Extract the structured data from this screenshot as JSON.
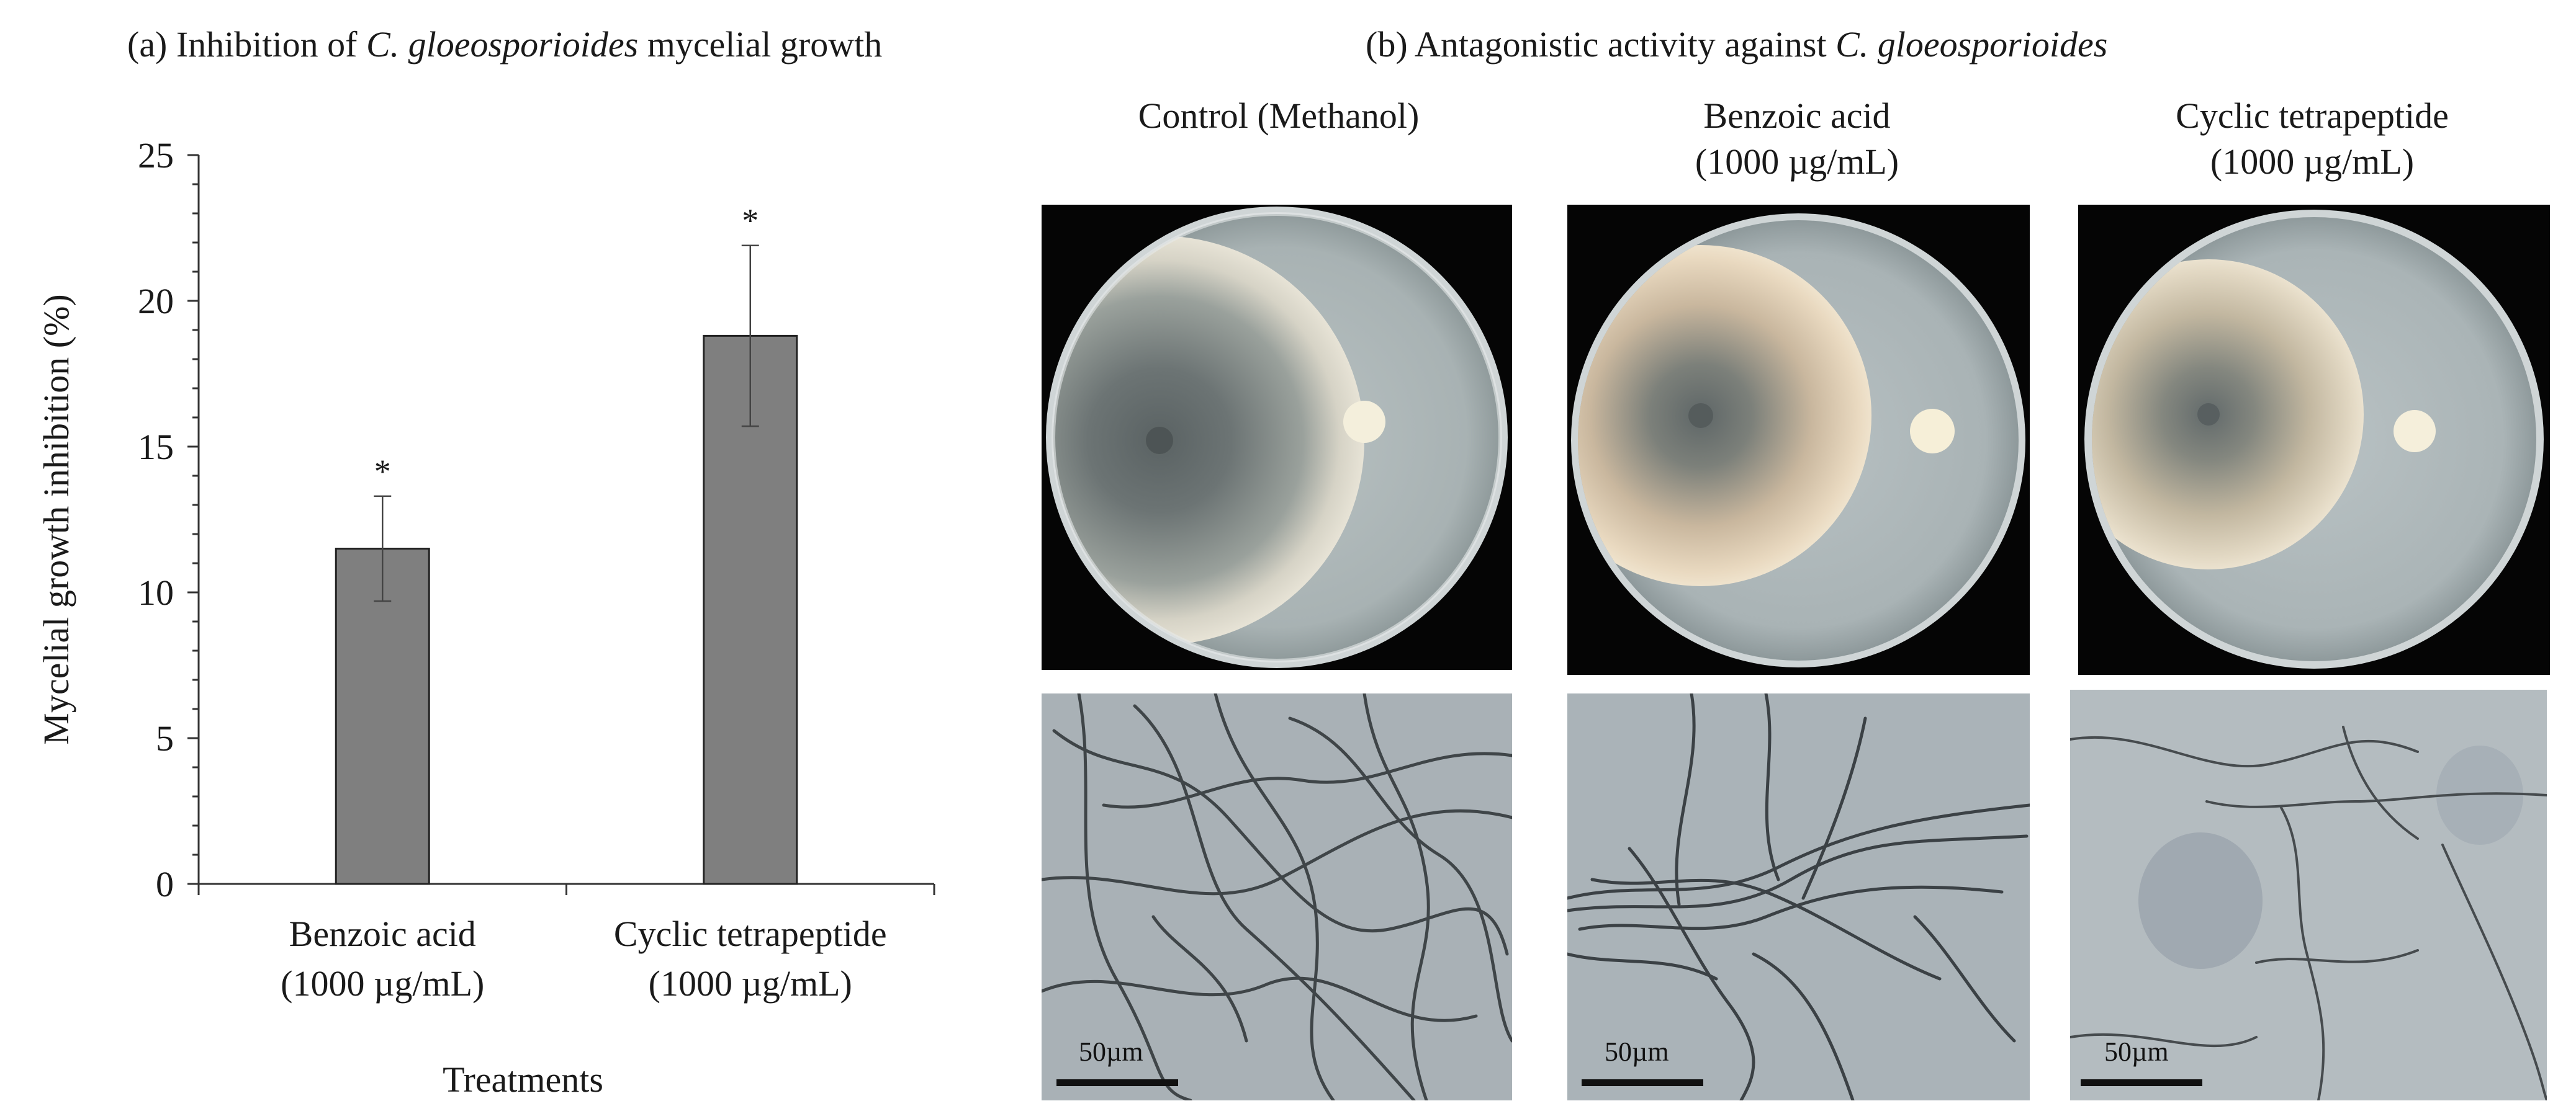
{
  "panel_a": {
    "title_prefix": "(a) Inhibition of ",
    "title_italic": "C. gloeosporioides",
    "title_suffix": " mycelial growth"
  },
  "panel_b": {
    "title_prefix": "(b) Antagonistic activity against ",
    "title_italic": "C. gloeosporioides",
    "columns": [
      {
        "line1": "Control (Methanol)",
        "line2": ""
      },
      {
        "line1": "Benzoic acid",
        "line2": "(1000 µg/mL)"
      },
      {
        "line1": "Cyclic tetrapeptide",
        "line2": "(1000 µg/mL)"
      }
    ],
    "scale_label": "50µm"
  },
  "chart_data": {
    "type": "bar",
    "categories": [
      [
        "Benzoic acid",
        "(1000 µg/mL)"
      ],
      [
        "Cyclic tetrapeptide",
        "(1000 µg/mL)"
      ]
    ],
    "values": [
      11.5,
      18.8
    ],
    "errors": [
      1.8,
      3.1
    ],
    "significance": [
      "*",
      "*"
    ],
    "ylabel": "Mycelial growth inhibition (%)",
    "xlabel": "Treatments",
    "ylim": [
      0,
      25
    ],
    "yticks": [
      0,
      5,
      10,
      15,
      20,
      25
    ],
    "grid": false,
    "bar_color": "#7f7f7f"
  }
}
